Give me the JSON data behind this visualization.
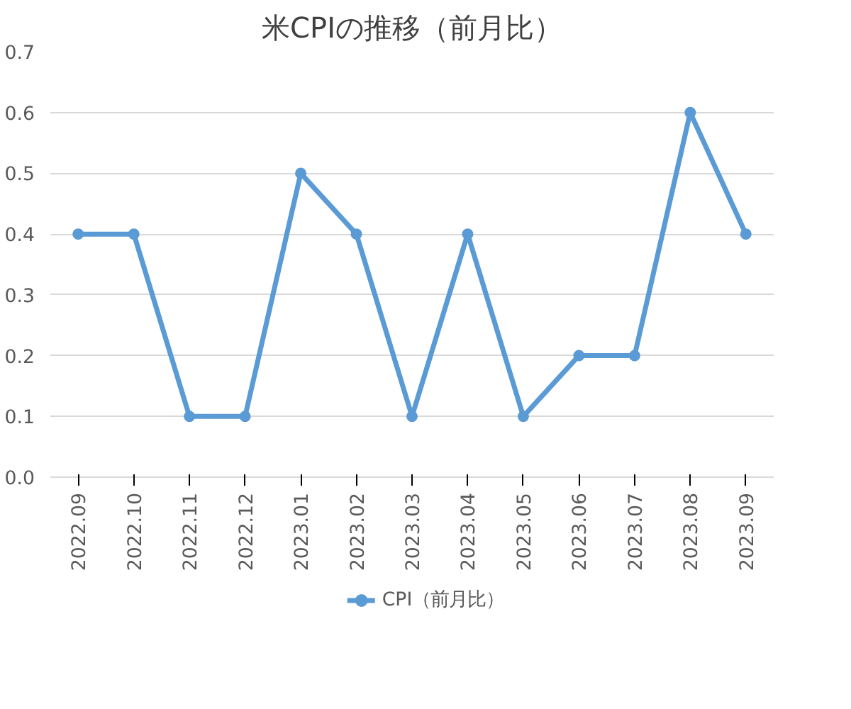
{
  "chart_data": {
    "type": "line",
    "title": "米CPIの推移（前月比）",
    "categories": [
      "2022.09",
      "2022.10",
      "2022.11",
      "2022.12",
      "2023.01",
      "2023.02",
      "2023.03",
      "2023.04",
      "2023.05",
      "2023.06",
      "2023.07",
      "2023.08",
      "2023.09"
    ],
    "series": [
      {
        "name": "CPI（前月比）",
        "color": "#5b9bd5",
        "values": [
          0.4,
          0.4,
          0.1,
          0.1,
          0.5,
          0.4,
          0.1,
          0.4,
          0.1,
          0.2,
          0.2,
          0.6,
          0.4
        ]
      }
    ],
    "ylim": [
      0,
      0.7
    ],
    "yticks": [
      {
        "value": 0,
        "label": "0.0"
      },
      0.1,
      0.2,
      0.3,
      0.4,
      0.5,
      0.6,
      0.7
    ],
    "grid": "y",
    "legend": "bottom",
    "marker": "circle",
    "line_style": "solid"
  }
}
